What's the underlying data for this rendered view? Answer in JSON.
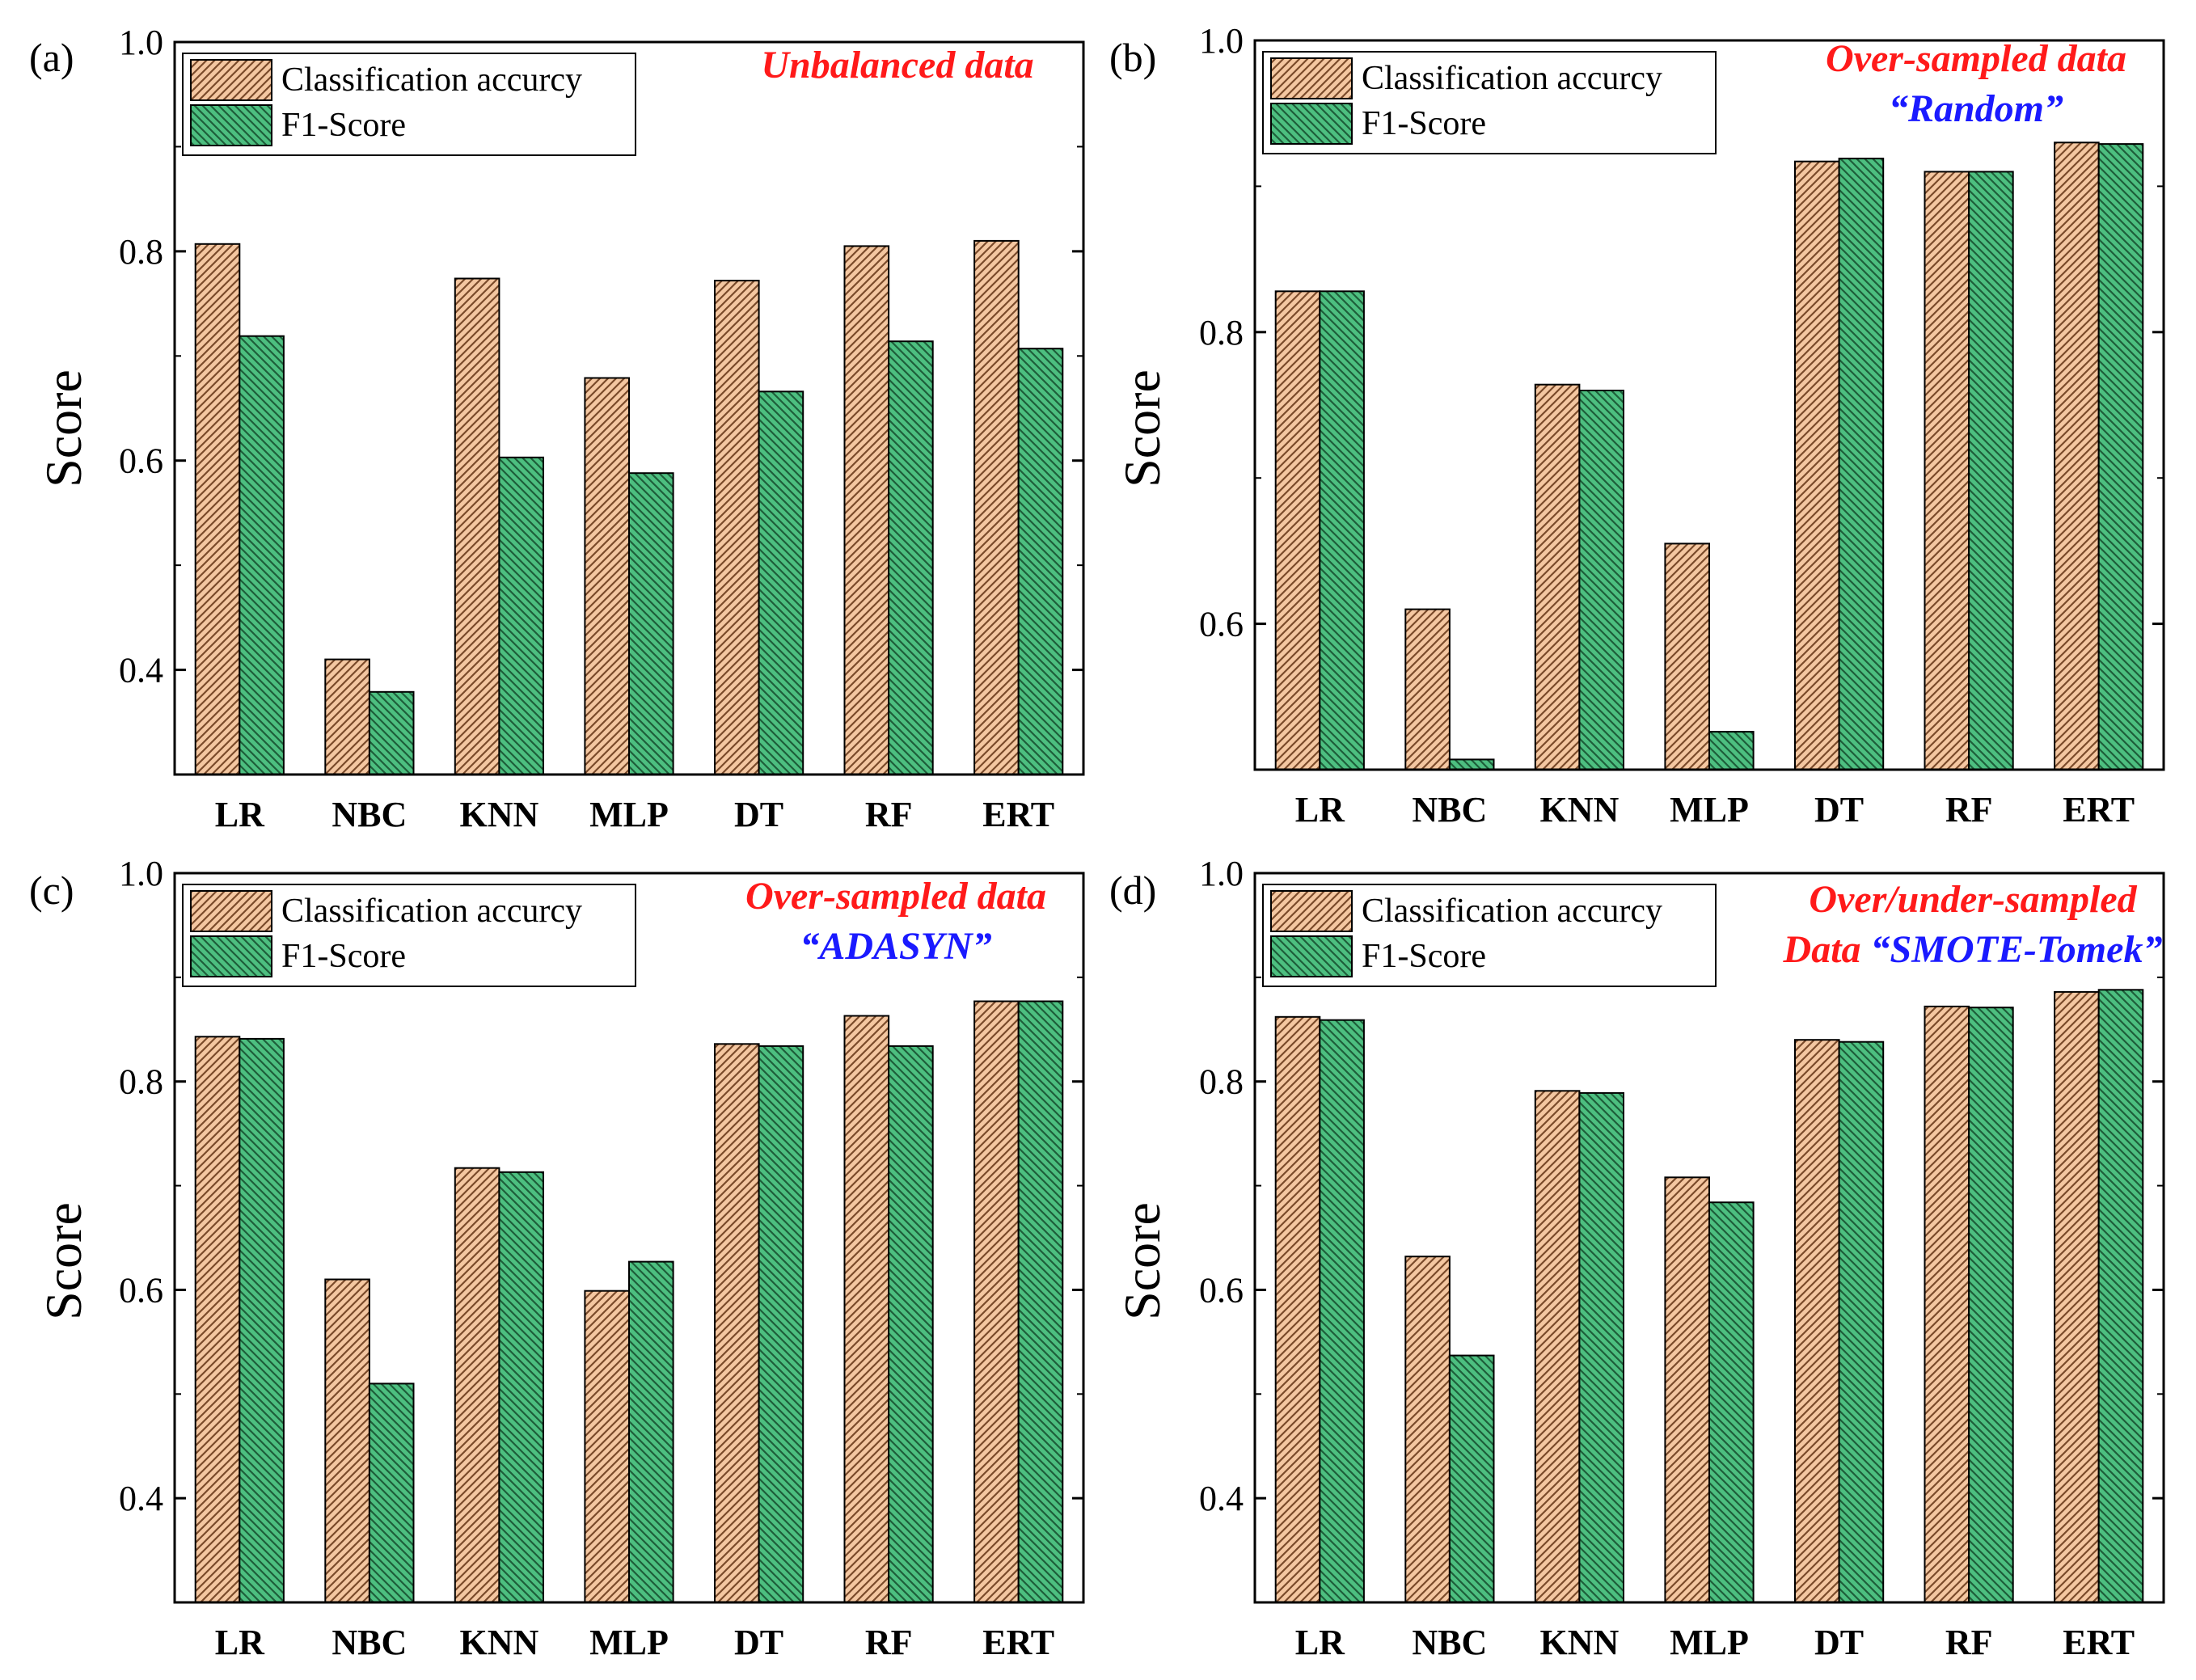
{
  "colors": {
    "accuracy_fill": "#F4C7A1",
    "accuracy_stroke": "#7a4a2a",
    "f1_fill": "#4DBF80",
    "f1_stroke": "#1e5e3a",
    "annotation_red": "#ff1a1a",
    "annotation_blue": "#1a1aff",
    "axis": "#000000"
  },
  "chart_data": [
    {
      "type": "bar",
      "panel_label": "(a)",
      "ylabel": "Score",
      "xlabel": "",
      "ylim": [
        0.3,
        1.0
      ],
      "yticks": [
        "0.4",
        "0.6",
        "0.8",
        "1.0"
      ],
      "ytick_values": [
        0.4,
        0.6,
        0.8,
        1.0
      ],
      "categories": [
        "LR",
        "NBC",
        "KNN",
        "MLP",
        "DT",
        "RF",
        "ERT"
      ],
      "series": [
        {
          "name": "Classification accurcy",
          "values": [
            0.807,
            0.41,
            0.774,
            0.679,
            0.772,
            0.805,
            0.81
          ]
        },
        {
          "name": "F1-Score",
          "values": [
            0.719,
            0.379,
            0.603,
            0.588,
            0.666,
            0.714,
            0.707
          ]
        }
      ],
      "legend_position": "top-left",
      "annotations": [
        {
          "text": "Unbalanced data",
          "color": "red"
        }
      ]
    },
    {
      "type": "bar",
      "panel_label": "(b)",
      "ylabel": "Score",
      "xlabel": "",
      "ylim": [
        0.5,
        1.0
      ],
      "yticks": [
        "0.6",
        "0.8",
        "1.0"
      ],
      "ytick_values": [
        0.6,
        0.8,
        1.0
      ],
      "categories": [
        "LR",
        "NBC",
        "KNN",
        "MLP",
        "DT",
        "RF",
        "ERT"
      ],
      "series": [
        {
          "name": "Classification accurcy",
          "values": [
            0.828,
            0.61,
            0.764,
            0.655,
            0.917,
            0.91,
            0.93
          ]
        },
        {
          "name": "F1-Score",
          "values": [
            0.828,
            0.507,
            0.76,
            0.526,
            0.919,
            0.91,
            0.929
          ]
        }
      ],
      "legend_position": "top-left",
      "annotations": [
        {
          "text": "Over-sampled data",
          "color": "red"
        },
        {
          "text": "“Random”",
          "color": "blue"
        }
      ]
    },
    {
      "type": "bar",
      "panel_label": "(c)",
      "ylabel": "Score",
      "xlabel": "",
      "ylim": [
        0.3,
        1.0
      ],
      "yticks": [
        "0.4",
        "0.6",
        "0.8",
        "1.0"
      ],
      "ytick_values": [
        0.4,
        0.6,
        0.8,
        1.0
      ],
      "categories": [
        "LR",
        "NBC",
        "KNN",
        "MLP",
        "DT",
        "RF",
        "ERT"
      ],
      "series": [
        {
          "name": "Classification accurcy",
          "values": [
            0.843,
            0.61,
            0.717,
            0.599,
            0.836,
            0.863,
            0.877
          ]
        },
        {
          "name": "F1-Score",
          "values": [
            0.841,
            0.51,
            0.713,
            0.627,
            0.834,
            0.834,
            0.877
          ]
        }
      ],
      "legend_position": "top-left",
      "annotations": [
        {
          "text": "Over-sampled data",
          "color": "red"
        },
        {
          "text": "“ADASYN”",
          "color": "blue"
        }
      ]
    },
    {
      "type": "bar",
      "panel_label": "(d)",
      "ylabel": "Score",
      "xlabel": "",
      "ylim": [
        0.3,
        1.0
      ],
      "yticks": [
        "0.4",
        "0.6",
        "0.8",
        "1.0"
      ],
      "ytick_values": [
        0.4,
        0.6,
        0.8,
        1.0
      ],
      "categories": [
        "LR",
        "NBC",
        "KNN",
        "MLP",
        "DT",
        "RF",
        "ERT"
      ],
      "series": [
        {
          "name": "Classification accurcy",
          "values": [
            0.862,
            0.632,
            0.791,
            0.708,
            0.84,
            0.872,
            0.886
          ]
        },
        {
          "name": "F1-Score",
          "values": [
            0.859,
            0.537,
            0.789,
            0.684,
            0.838,
            0.871,
            0.888
          ]
        }
      ],
      "legend_position": "top-left",
      "annotations": [
        {
          "text": "Over/under-sampled",
          "color": "red"
        },
        {
          "text": "Data ",
          "color": "red",
          "inline_with": "“SMOTE-Tomek”"
        },
        {
          "text": "“SMOTE-Tomek”",
          "color": "blue"
        }
      ]
    }
  ]
}
